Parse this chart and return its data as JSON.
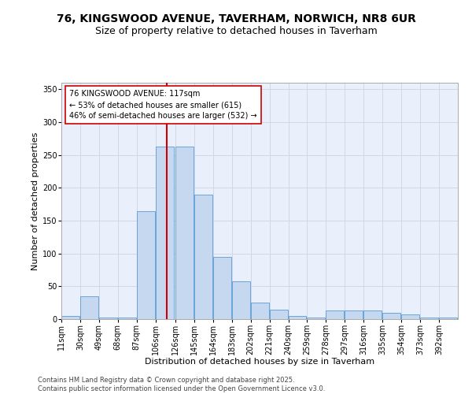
{
  "title_line1": "76, KINGSWOOD AVENUE, TAVERHAM, NORWICH, NR8 6UR",
  "title_line2": "Size of property relative to detached houses in Taverham",
  "xlabel": "Distribution of detached houses by size in Taverham",
  "ylabel": "Number of detached properties",
  "bin_labels": [
    "11sqm",
    "30sqm",
    "49sqm",
    "68sqm",
    "87sqm",
    "106sqm",
    "126sqm",
    "145sqm",
    "164sqm",
    "183sqm",
    "202sqm",
    "221sqm",
    "240sqm",
    "259sqm",
    "278sqm",
    "297sqm",
    "316sqm",
    "335sqm",
    "354sqm",
    "373sqm",
    "392sqm"
  ],
  "bin_edges": [
    11,
    30,
    49,
    68,
    87,
    106,
    126,
    145,
    164,
    183,
    202,
    221,
    240,
    259,
    278,
    297,
    316,
    335,
    354,
    373,
    392
  ],
  "bar_values": [
    5,
    35,
    2,
    2,
    165,
    263,
    263,
    190,
    95,
    58,
    25,
    15,
    5,
    2,
    13,
    13,
    13,
    10,
    7,
    2,
    3
  ],
  "bar_color": "#c5d8f0",
  "bar_edge_color": "#5b9bd5",
  "red_line_x": 117,
  "red_line_color": "#cc0000",
  "annotation_line1": "76 KINGSWOOD AVENUE: 117sqm",
  "annotation_line2": "← 53% of detached houses are smaller (615)",
  "annotation_line3": "46% of semi-detached houses are larger (532) →",
  "annotation_box_color": "#ffffff",
  "annotation_box_edge": "#cc0000",
  "ylim": [
    0,
    360
  ],
  "yticks": [
    0,
    50,
    100,
    150,
    200,
    250,
    300,
    350
  ],
  "grid_color": "#d0d8e8",
  "background_color": "#eaf0fb",
  "footer_text": "Contains HM Land Registry data © Crown copyright and database right 2025.\nContains public sector information licensed under the Open Government Licence v3.0.",
  "title_fontsize": 10,
  "subtitle_fontsize": 9,
  "axis_label_fontsize": 8,
  "tick_fontsize": 7,
  "annotation_fontsize": 7,
  "footer_fontsize": 6
}
